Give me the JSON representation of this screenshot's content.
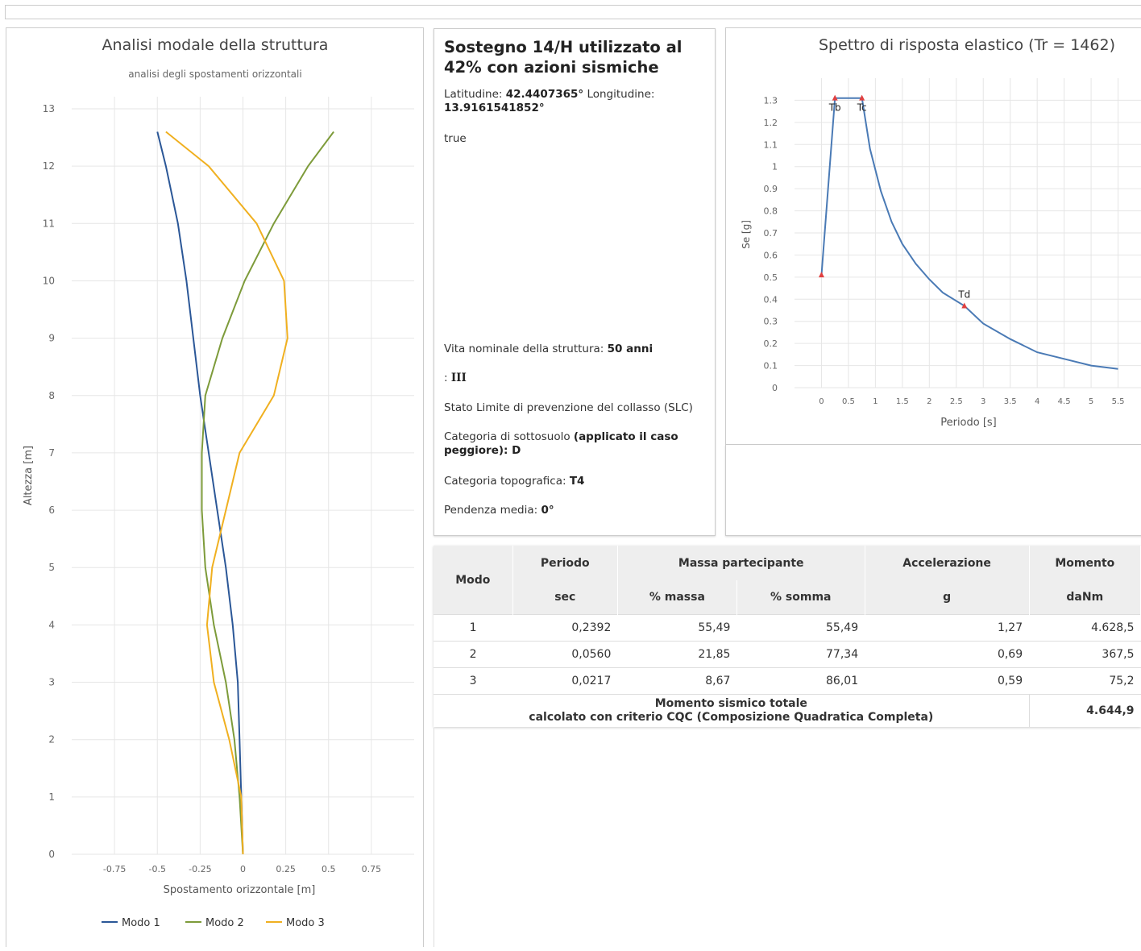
{
  "modal_chart": {
    "title": "Analisi modale della struttura",
    "subtitle": "analisi degli spostamenti orizzontali",
    "ylabel": "Altezza [m]",
    "xlabel": "Spostamento orizzontale [m]",
    "legend_position": "bottom-center",
    "grid": true
  },
  "spectrum_chart": {
    "title": "Spettro di risposta elastico (Tr = 1462)",
    "ylabel": "Se [g]",
    "xlabel": "Periodo [s]",
    "grid": true,
    "marker_labels": [
      "Tb",
      "Tc",
      "Td"
    ]
  },
  "chart_data": [
    {
      "type": "line",
      "title": "Analisi modale della struttura",
      "subtitle": "analisi degli spostamenti orizzontali",
      "xlabel": "Spostamento orizzontale [m]",
      "ylabel": "Altezza [m]",
      "xlim": [
        -1,
        1
      ],
      "ylim": [
        0,
        13
      ],
      "xticks": [
        "-0.75",
        "-0.5",
        "-0.25",
        "0",
        "0.25",
        "0.5",
        "0.75"
      ],
      "yticks": [
        "0",
        "1",
        "2",
        "3",
        "4",
        "5",
        "6",
        "7",
        "8",
        "9",
        "10",
        "11",
        "12",
        "13"
      ],
      "colors": [
        "#2b5797",
        "#7d9b3a",
        "#f0b020"
      ],
      "series": [
        {
          "name": "Modo 1",
          "points": [
            [
              0,
              0
            ],
            [
              -0.01,
              1
            ],
            [
              -0.02,
              2
            ],
            [
              -0.03,
              3
            ],
            [
              -0.06,
              4
            ],
            [
              -0.1,
              5
            ],
            [
              -0.15,
              6
            ],
            [
              -0.2,
              7
            ],
            [
              -0.25,
              8
            ],
            [
              -0.29,
              9
            ],
            [
              -0.33,
              10
            ],
            [
              -0.38,
              11
            ],
            [
              -0.45,
              12
            ],
            [
              -0.5,
              12.6
            ]
          ]
        },
        {
          "name": "Modo 2",
          "points": [
            [
              0,
              0
            ],
            [
              -0.02,
              1
            ],
            [
              -0.05,
              2
            ],
            [
              -0.1,
              3
            ],
            [
              -0.17,
              4
            ],
            [
              -0.22,
              5
            ],
            [
              -0.24,
              6
            ],
            [
              -0.24,
              7
            ],
            [
              -0.22,
              8
            ],
            [
              -0.12,
              9
            ],
            [
              0.01,
              10
            ],
            [
              0.18,
              11
            ],
            [
              0.38,
              12
            ],
            [
              0.53,
              12.6
            ]
          ]
        },
        {
          "name": "Modo 3",
          "points": [
            [
              0,
              0
            ],
            [
              -0.01,
              1
            ],
            [
              -0.08,
              2
            ],
            [
              -0.17,
              3
            ],
            [
              -0.21,
              4
            ],
            [
              -0.18,
              5
            ],
            [
              -0.1,
              6
            ],
            [
              -0.02,
              7
            ],
            [
              0.18,
              8
            ],
            [
              0.26,
              9
            ],
            [
              0.24,
              10
            ],
            [
              0.08,
              11
            ],
            [
              -0.2,
              12
            ],
            [
              -0.45,
              12.6
            ]
          ]
        }
      ]
    },
    {
      "type": "line",
      "title": "Spettro di risposta elastico (Tr = 1462)",
      "xlabel": "Periodo [s]",
      "ylabel": "Se [g]",
      "xlim": [
        -0.5,
        6
      ],
      "ylim": [
        0,
        1.4
      ],
      "xticks": [
        "0",
        "0.5",
        "1",
        "1.5",
        "2",
        "2.5",
        "3",
        "3.5",
        "4",
        "4.5",
        "5",
        "5.5",
        "6"
      ],
      "yticks": [
        "0",
        "0.1",
        "0.2",
        "0.3",
        "0.4",
        "0.5",
        "0.6",
        "0.7",
        "0.8",
        "0.9",
        "1",
        "1.1",
        "1.2",
        "1.3"
      ],
      "color": "#4a7ab5",
      "marker_color": "#e04040",
      "series": [
        {
          "points": [
            [
              0,
              0.51
            ],
            [
              0.25,
              1.31
            ],
            [
              0.75,
              1.31
            ],
            [
              0.9,
              1.08
            ],
            [
              1.1,
              0.89
            ],
            [
              1.3,
              0.75
            ],
            [
              1.5,
              0.65
            ],
            [
              1.75,
              0.56
            ],
            [
              2,
              0.49
            ],
            [
              2.25,
              0.43
            ],
            [
              2.65,
              0.37
            ],
            [
              3,
              0.29
            ],
            [
              3.5,
              0.22
            ],
            [
              4,
              0.16
            ],
            [
              4.5,
              0.13
            ],
            [
              5,
              0.1
            ],
            [
              5.5,
              0.085
            ]
          ]
        }
      ],
      "markers": [
        {
          "label": "",
          "x": 0,
          "y": 0.51
        },
        {
          "label": "Tb",
          "x": 0.25,
          "y": 1.31
        },
        {
          "label": "Tc",
          "x": 0.75,
          "y": 1.31
        },
        {
          "label": "Td",
          "x": 2.65,
          "y": 0.37
        }
      ]
    }
  ],
  "legend": [
    "Modo 1",
    "Modo 2",
    "Modo 3"
  ],
  "info": {
    "title": "Sostegno 14/H utilizzato al 42% con azioni sismiche",
    "lat_label": "Latitudine:",
    "lat_value": "42.4407365°",
    "lon_label": "Longitudine:",
    "lon_value": "13.9161541852°",
    "flag": "true",
    "vita_label": "Vita nominale della struttura:",
    "vita_value": "50 anni",
    "classe_label": ":",
    "classe_value": "III",
    "stato_limite": "Stato Limite di prevenzione del collasso (SLC)",
    "categoria_label": "Categoria di sottosuolo",
    "categoria_note": "(applicato il caso peggiore): D",
    "topo_label": "Categoria topografica:",
    "topo_value": "T4",
    "pendenza_label": "Pendenza media:",
    "pendenza_value": "0°"
  },
  "table": {
    "h_modo": "Modo",
    "h_periodo": "Periodo",
    "h_massa": "Massa partecipante",
    "h_acc": "Accelerazione",
    "h_momento": "Momento",
    "u_periodo": "sec",
    "u_massa": "% massa",
    "u_somma": "% somma",
    "u_acc": "g",
    "u_momento": "daNm",
    "rows": [
      {
        "modo": "1",
        "periodo": "0,2392",
        "massa": "55,49",
        "somma": "55,49",
        "acc": "1,27",
        "momento": "4.628,5"
      },
      {
        "modo": "2",
        "periodo": "0,0560",
        "massa": "21,85",
        "somma": "77,34",
        "acc": "0,69",
        "momento": "367,5"
      },
      {
        "modo": "3",
        "periodo": "0,0217",
        "massa": "8,67",
        "somma": "86,01",
        "acc": "0,59",
        "momento": "75,2"
      }
    ],
    "total_label": "Momento sismico totale",
    "total_sub": "calcolato con criterio CQC (Composizione Quadratica Completa)",
    "total_value": "4.644,9"
  }
}
